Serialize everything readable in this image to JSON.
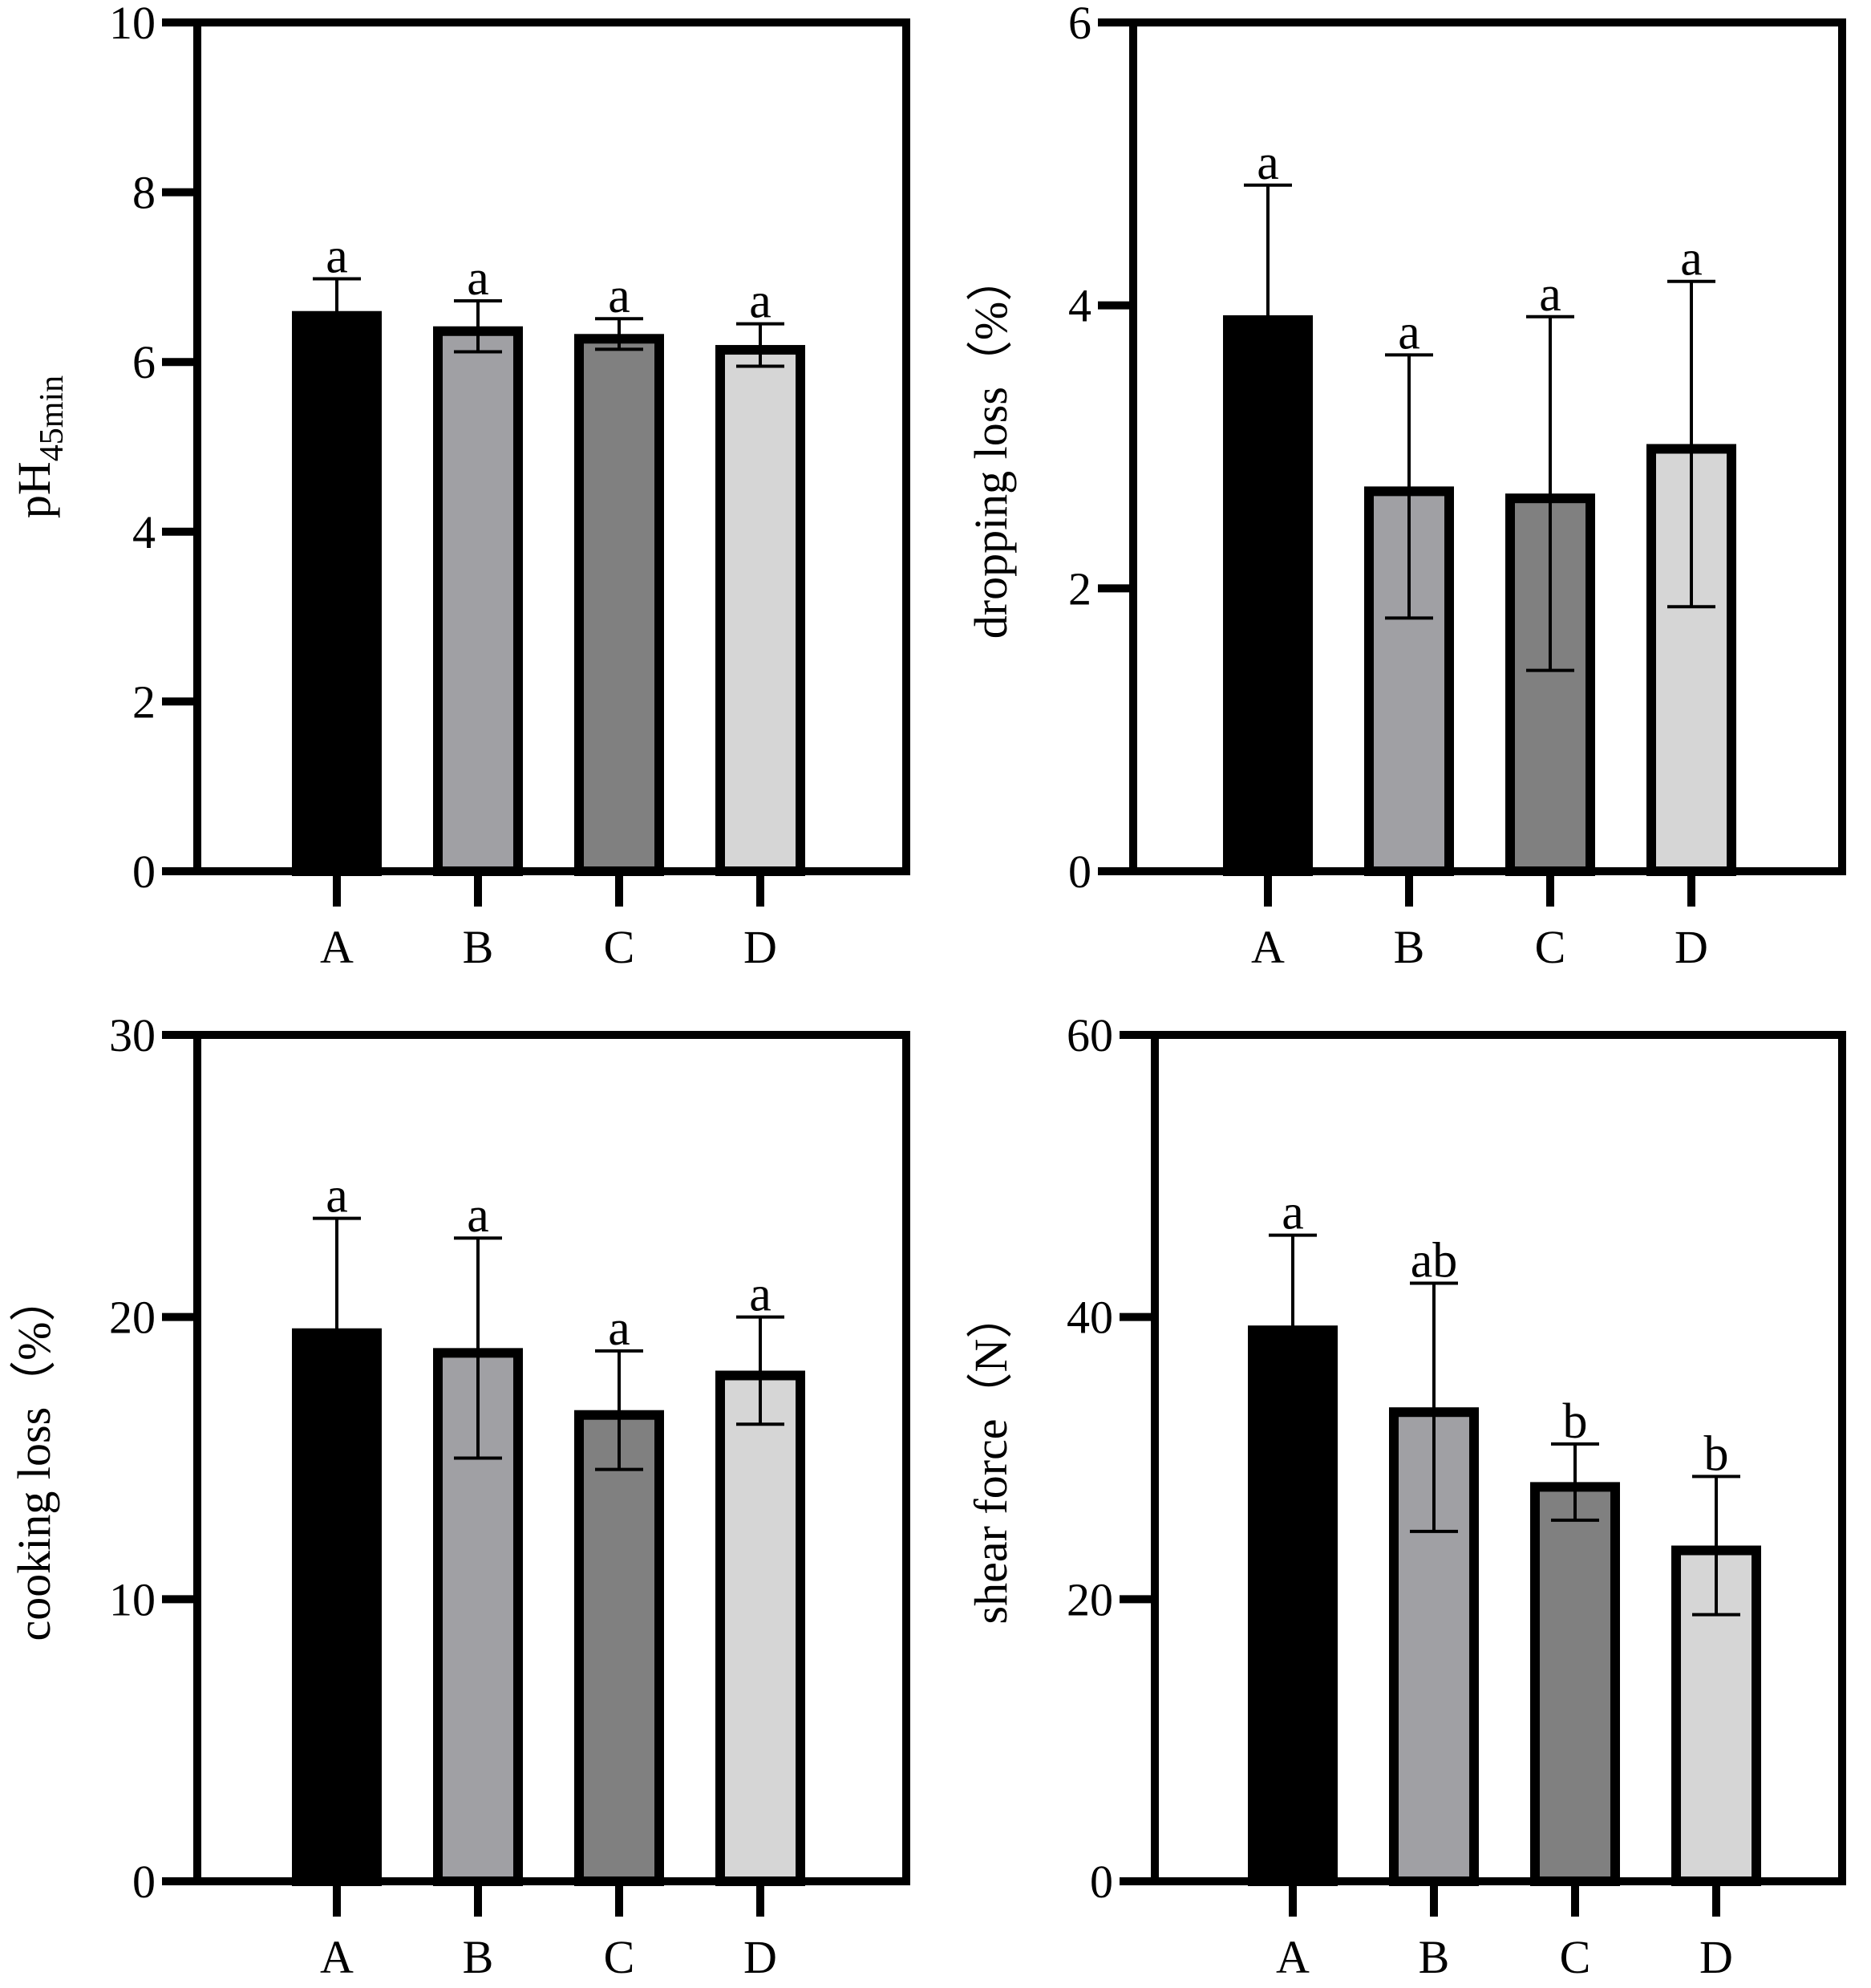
{
  "colors": {
    "A": "#000000",
    "B": "#a0a0a4",
    "C": "#808080",
    "D": "#d6d6d6",
    "axis": "#000000"
  },
  "chart_data": [
    {
      "type": "bar",
      "title": "",
      "xlabel": "",
      "ylabel": "pH",
      "ylabel_sub": "45min",
      "ylim": [
        0,
        10
      ],
      "yticks": [
        "0",
        "2",
        "4",
        "6",
        "8",
        "10"
      ],
      "categories": [
        "A",
        "B",
        "C",
        "D"
      ],
      "values": [
        6.6,
        6.42,
        6.33,
        6.2
      ],
      "errors": [
        0.38,
        0.3,
        0.18,
        0.25
      ],
      "significance": [
        "a",
        "a",
        "a",
        "a"
      ]
    },
    {
      "type": "bar",
      "title": "",
      "xlabel": "",
      "ylabel": "dropping loss（%）",
      "ylim": [
        0,
        6
      ],
      "yticks": [
        "0",
        "2",
        "4",
        "6"
      ],
      "categories": [
        "A",
        "B",
        "C",
        "D"
      ],
      "values": [
        3.93,
        2.72,
        2.67,
        3.02
      ],
      "errors": [
        0.92,
        0.93,
        1.25,
        1.15
      ],
      "significance": [
        "a",
        "a",
        "a",
        "a"
      ]
    },
    {
      "type": "bar",
      "title": "",
      "xlabel": "",
      "ylabel": "cooking loss（%）",
      "ylim": [
        0,
        30
      ],
      "yticks": [
        "0",
        "10",
        "20",
        "30"
      ],
      "categories": [
        "A",
        "B",
        "C",
        "D"
      ],
      "values": [
        19.6,
        18.9,
        16.7,
        18.1
      ],
      "errors": [
        3.9,
        3.9,
        2.1,
        1.9
      ],
      "significance": [
        "a",
        "a",
        "a",
        "a"
      ]
    },
    {
      "type": "bar",
      "title": "",
      "xlabel": "",
      "ylabel": "shear force（N）",
      "ylim": [
        0,
        60
      ],
      "yticks": [
        "0",
        "20",
        "40",
        "60"
      ],
      "categories": [
        "A",
        "B",
        "C",
        "D"
      ],
      "values": [
        39.4,
        33.6,
        28.3,
        23.8
      ],
      "errors": [
        6.4,
        8.8,
        2.7,
        4.9
      ],
      "significance": [
        "a",
        "ab",
        "b",
        "b"
      ]
    }
  ]
}
